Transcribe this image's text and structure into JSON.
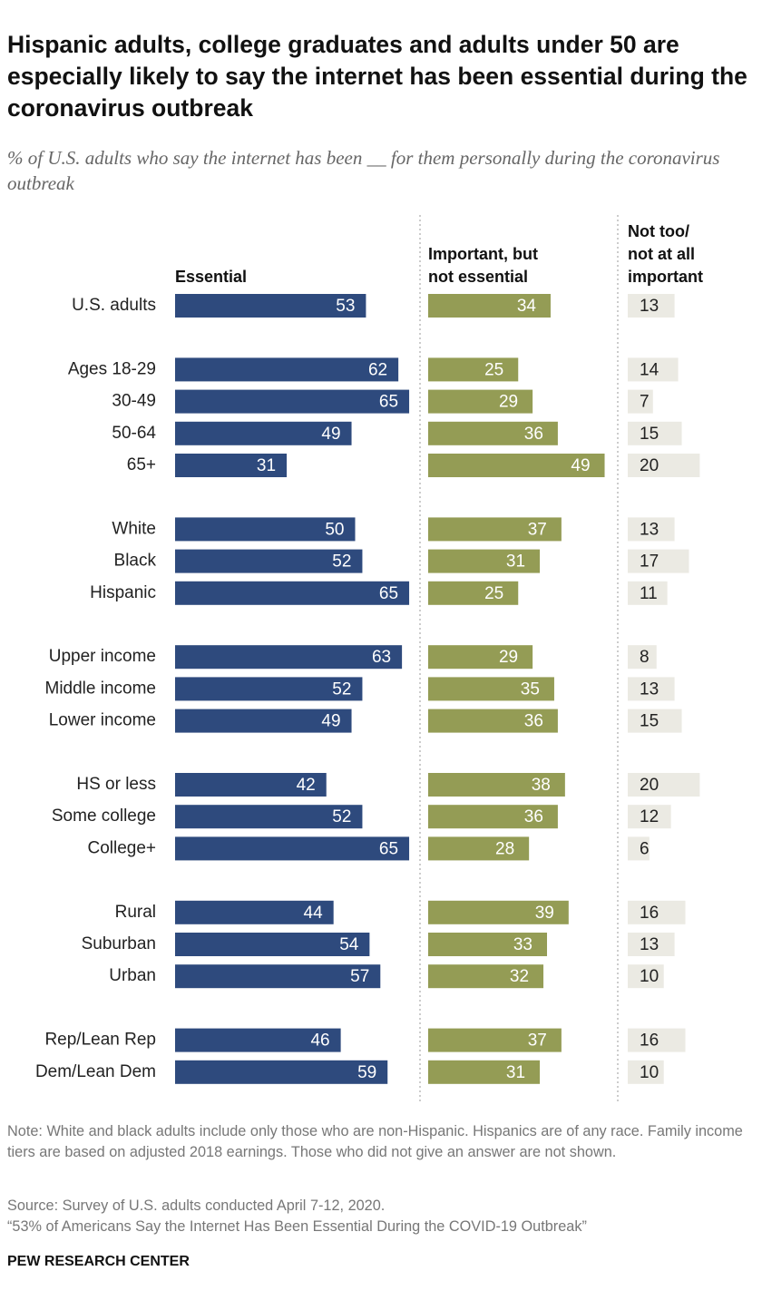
{
  "chart_data": {
    "type": "bar",
    "title": "Hispanic adults, college graduates and adults under 50 are especially likely to say the internet has been essential during the coronavirus outbreak",
    "subtitle": "% of U.S. adults who say the internet has been __ for them personally during the coronavirus outbreak",
    "categories": [
      "U.S. adults",
      "Ages 18-29",
      "30-49",
      "50-64",
      "65+",
      "White",
      "Black",
      "Hispanic",
      "Upper income",
      "Middle income",
      "Lower income",
      "HS or less",
      "Some college",
      "College+",
      "Rural",
      "Suburban",
      "Urban",
      "Rep/Lean Rep",
      "Dem/Lean Dem"
    ],
    "series": [
      {
        "name": "Essential",
        "color": "#2e4a7d",
        "values": [
          53,
          62,
          65,
          49,
          31,
          50,
          52,
          65,
          63,
          52,
          49,
          42,
          52,
          65,
          44,
          54,
          57,
          46,
          59
        ]
      },
      {
        "name": "Important, but not essential",
        "color": "#949c55",
        "values": [
          34,
          25,
          29,
          36,
          49,
          37,
          31,
          25,
          29,
          35,
          36,
          38,
          36,
          28,
          39,
          33,
          32,
          37,
          31
        ]
      },
      {
        "name": "Not too/ not at all important",
        "color": "#ebeae3",
        "values": [
          13,
          14,
          7,
          15,
          20,
          13,
          17,
          11,
          8,
          13,
          15,
          20,
          12,
          6,
          16,
          13,
          10,
          16,
          10
        ]
      }
    ],
    "note": "Note: White and black adults include only those who are non-Hispanic. Hispanics are of any race. Family income tiers are based on adjusted 2018 earnings. Those who did not give an answer are not shown.",
    "source": [
      "Source: Survey of U.S. adults conducted April 7-12, 2020.",
      "“53% of Americans Say the Internet Has Been Essential During the COVID-19 Outbreak”"
    ],
    "org": "PEW RESEARCH CENTER"
  }
}
